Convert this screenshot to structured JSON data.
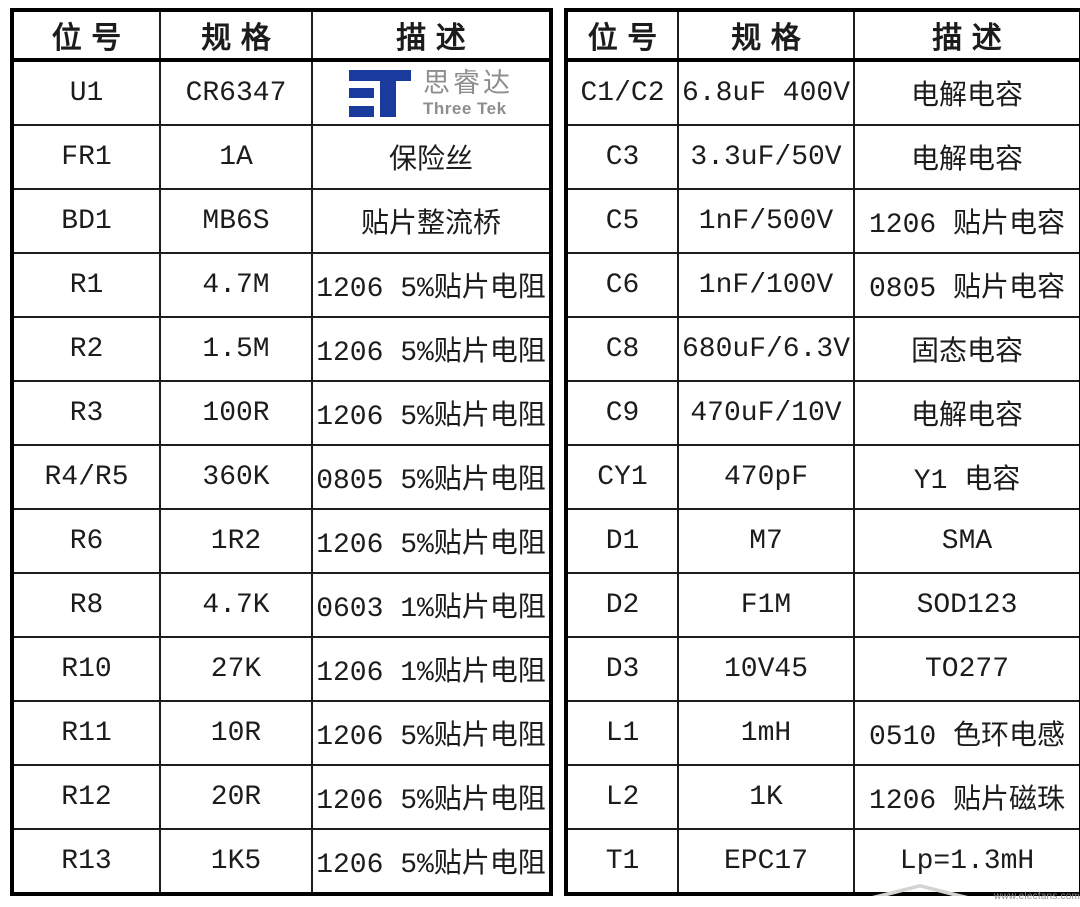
{
  "tables": [
    {
      "id": "left",
      "headers": [
        "位号",
        "规格",
        "描述"
      ],
      "rows": [
        {
          "pos": "U1",
          "spec": "CR6347",
          "desc": "",
          "logo": true
        },
        {
          "pos": "FR1",
          "spec": "1A",
          "desc": "保险丝"
        },
        {
          "pos": "BD1",
          "spec": "MB6S",
          "desc": "贴片整流桥"
        },
        {
          "pos": "R1",
          "spec": "4.7M",
          "desc": "1206 5%贴片电阻"
        },
        {
          "pos": "R2",
          "spec": "1.5M",
          "desc": "1206 5%贴片电阻"
        },
        {
          "pos": "R3",
          "spec": "100R",
          "desc": "1206 5%贴片电阻"
        },
        {
          "pos": "R4/R5",
          "spec": "360K",
          "desc": "0805 5%贴片电阻"
        },
        {
          "pos": "R6",
          "spec": "1R2",
          "desc": "1206 5%贴片电阻"
        },
        {
          "pos": "R8",
          "spec": "4.7K",
          "desc": "0603 1%贴片电阻"
        },
        {
          "pos": "R10",
          "spec": "27K",
          "desc": "1206 1%贴片电阻"
        },
        {
          "pos": "R11",
          "spec": "10R",
          "desc": "1206 5%贴片电阻"
        },
        {
          "pos": "R12",
          "spec": "20R",
          "desc": "1206 5%贴片电阻"
        },
        {
          "pos": "R13",
          "spec": "1K5",
          "desc": "1206 5%贴片电阻"
        }
      ]
    },
    {
      "id": "right",
      "headers": [
        "位号",
        "规格",
        "描述"
      ],
      "rows": [
        {
          "pos": "C1/C2",
          "spec": "6.8uF 400V",
          "desc": "电解电容"
        },
        {
          "pos": "C3",
          "spec": "3.3uF/50V",
          "desc": "电解电容"
        },
        {
          "pos": "C5",
          "spec": "1nF/500V",
          "desc": "1206 贴片电容"
        },
        {
          "pos": "C6",
          "spec": "1nF/100V",
          "desc": "0805 贴片电容"
        },
        {
          "pos": "C8",
          "spec": "680uF/6.3V",
          "desc": "固态电容"
        },
        {
          "pos": "C9",
          "spec": "470uF/10V",
          "desc": "电解电容"
        },
        {
          "pos": "CY1",
          "spec": "470pF",
          "desc": "Y1 电容"
        },
        {
          "pos": "D1",
          "spec": "M7",
          "desc": "SMA"
        },
        {
          "pos": "D2",
          "spec": "F1M",
          "desc": "SOD123"
        },
        {
          "pos": "D3",
          "spec": "10V45",
          "desc": "TO277"
        },
        {
          "pos": "L1",
          "spec": "1mH",
          "desc": "0510 色环电感"
        },
        {
          "pos": "L2",
          "spec": "1K",
          "desc": "1206 贴片磁珠"
        },
        {
          "pos": "T1",
          "spec": "EPC17",
          "desc": "Lp=1.3mH"
        }
      ]
    }
  ],
  "logo": {
    "cn": "思睿达",
    "en": "Three Tek",
    "mark_color": "#1a3a9e",
    "text_color": "#8e8e8e"
  },
  "watermark": {
    "text": "www.elecfans.com",
    "color": "#8f8f8f"
  }
}
